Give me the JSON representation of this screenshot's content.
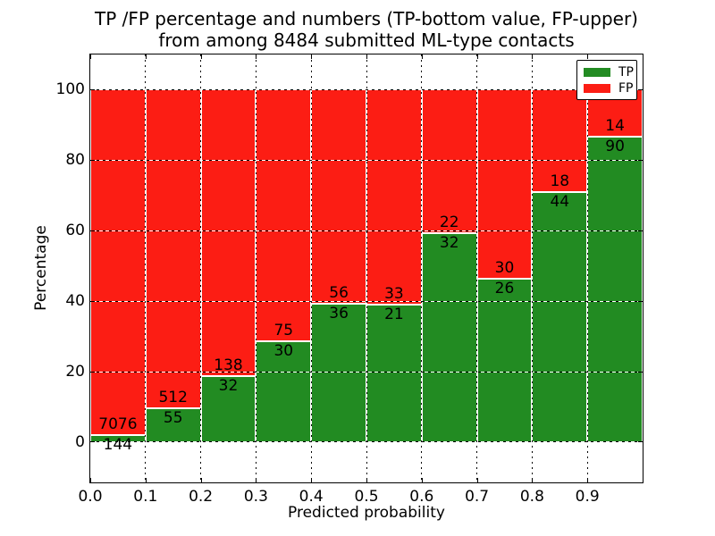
{
  "chart_data": {
    "type": "bar",
    "subtype": "stacked-percentage",
    "title_lines": [
      "TP /FP percentage and numbers (TP-bottom value, FP-upper)",
      "from among 8484 submitted ML-type contacts"
    ],
    "xlabel": "Predicted probability",
    "ylabel": "Percentage",
    "x_tick_labels": [
      "0.0",
      "0.1",
      "0.2",
      "0.3",
      "0.4",
      "0.5",
      "0.6",
      "0.7",
      "0.8",
      "0.9"
    ],
    "y_ticks": [
      0,
      20,
      40,
      60,
      80,
      100
    ],
    "xlim": [
      0.0,
      1.0
    ],
    "ylim": [
      -11.4,
      109.9
    ],
    "grid": true,
    "legend_position": "upper right",
    "series": [
      {
        "name": "TP",
        "color": "#228b22",
        "position": "bottom"
      },
      {
        "name": "FP",
        "color": "#fc1d14",
        "position": "top"
      }
    ],
    "bins": [
      {
        "range": [
          0.0,
          0.1
        ],
        "tp": 144,
        "fp": 7076
      },
      {
        "range": [
          0.1,
          0.2
        ],
        "tp": 55,
        "fp": 512
      },
      {
        "range": [
          0.2,
          0.3
        ],
        "tp": 32,
        "fp": 138
      },
      {
        "range": [
          0.3,
          0.4
        ],
        "tp": 30,
        "fp": 75
      },
      {
        "range": [
          0.4,
          0.5
        ],
        "tp": 36,
        "fp": 56
      },
      {
        "range": [
          0.5,
          0.6
        ],
        "tp": 21,
        "fp": 33
      },
      {
        "range": [
          0.6,
          0.7
        ],
        "tp": 32,
        "fp": 22
      },
      {
        "range": [
          0.7,
          0.8
        ],
        "tp": 26,
        "fp": 30
      },
      {
        "range": [
          0.8,
          0.9
        ],
        "tp": 44,
        "fp": 18
      },
      {
        "range": [
          0.9,
          1.0
        ],
        "tp": 90,
        "fp": 14
      }
    ]
  }
}
